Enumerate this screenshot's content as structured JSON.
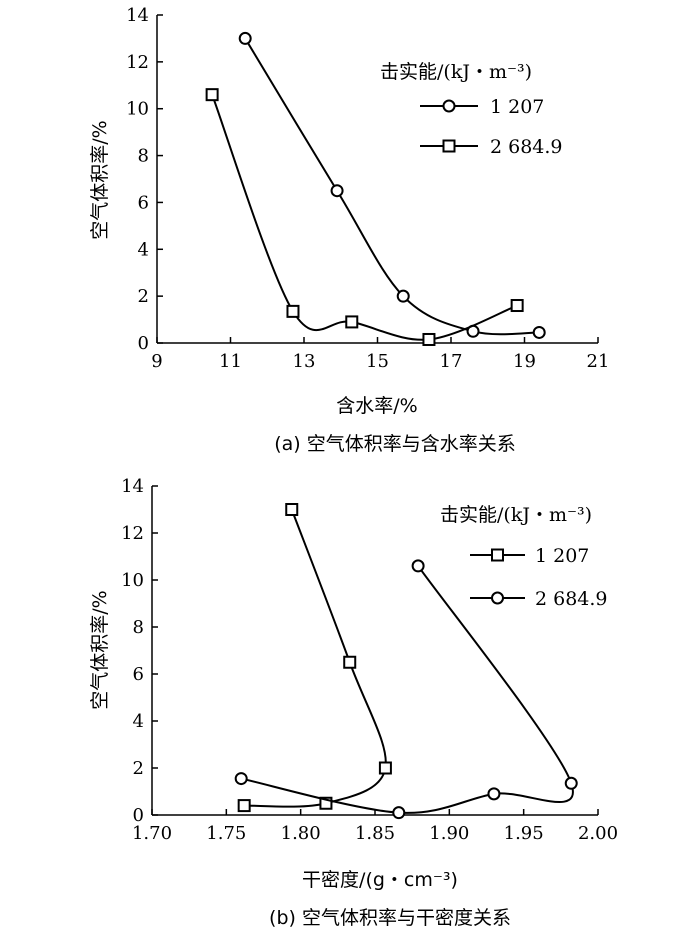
{
  "chart_data": [
    {
      "type": "line",
      "caption": "(a) 空气体积率与含水率关系",
      "xlabel": "含水率/%",
      "ylabel": "空气体积率/%",
      "xlim": [
        9,
        21
      ],
      "ylim": [
        0,
        14
      ],
      "xticks": [
        "9",
        "11",
        "13",
        "15",
        "17",
        "19",
        "21"
      ],
      "yticks": [
        "0",
        "2",
        "4",
        "6",
        "8",
        "10",
        "12",
        "14"
      ],
      "legend_title": "击实能/(kJ・m⁻³)",
      "legend_position": "top-right",
      "series": [
        {
          "name": "1 207",
          "marker": "circle",
          "x": [
            11.4,
            13.9,
            15.7,
            17.6,
            19.4
          ],
          "y": [
            13.0,
            6.5,
            2.0,
            0.5,
            0.45
          ]
        },
        {
          "name": "2 684.9",
          "marker": "square",
          "x": [
            10.5,
            12.7,
            14.3,
            16.4,
            18.8
          ],
          "y": [
            10.6,
            1.35,
            0.9,
            0.15,
            1.6
          ]
        }
      ]
    },
    {
      "type": "line",
      "caption": "(b) 空气体积率与干密度关系",
      "xlabel": "干密度/(g・cm⁻³)",
      "ylabel": "空气体积率/%",
      "xlim": [
        1.7,
        2.0
      ],
      "ylim": [
        0,
        14
      ],
      "xticks": [
        "1.70",
        "1.75",
        "1.80",
        "1.85",
        "1.90",
        "1.95",
        "2.00"
      ],
      "yticks": [
        "0",
        "2",
        "4",
        "6",
        "8",
        "10",
        "12",
        "14"
      ],
      "legend_title": "击实能/(kJ・m⁻³)",
      "legend_position": "top-right",
      "series": [
        {
          "name": "1 207",
          "marker": "square",
          "x": [
            1.762,
            1.817,
            1.857,
            1.833,
            1.794
          ],
          "y": [
            0.4,
            0.5,
            2.0,
            6.5,
            13.0
          ]
        },
        {
          "name": "2 684.9",
          "marker": "circle",
          "x": [
            1.76,
            1.866,
            1.93,
            1.982,
            1.879
          ],
          "y": [
            1.55,
            0.1,
            0.9,
            1.35,
            10.6
          ]
        }
      ]
    }
  ]
}
